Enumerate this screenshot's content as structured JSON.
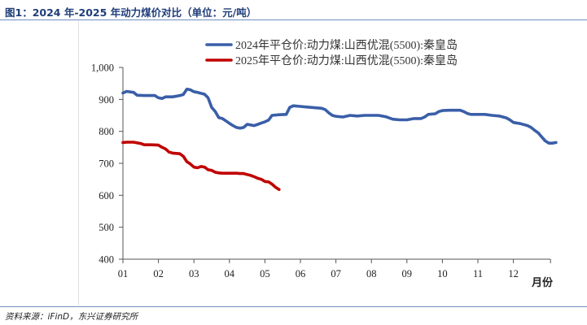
{
  "title": "图1：2024 年-2025 年动力煤价对比（单位：元/吨）",
  "source": "资料来源：iFinD，东兴证券研究所",
  "chart_data": {
    "type": "line",
    "xlabel": "月份",
    "categories": [
      "01",
      "02",
      "03",
      "04",
      "05",
      "06",
      "07",
      "08",
      "09",
      "10",
      "11",
      "12"
    ],
    "ylim": [
      400,
      1000
    ],
    "yticks": [
      "400",
      "500",
      "600",
      "700",
      "800",
      "900",
      "1,000"
    ],
    "grid": false,
    "legend_position": "top-center",
    "series": [
      {
        "name": "2024年平仓价:动力煤:山西优混(5500):秦皇岛",
        "color": "#3a5ea8",
        "points": [
          [
            1.0,
            920
          ],
          [
            1.1,
            925
          ],
          [
            1.3,
            922
          ],
          [
            1.4,
            913
          ],
          [
            1.6,
            912
          ],
          [
            1.8,
            912
          ],
          [
            1.9,
            912
          ],
          [
            2.0,
            905
          ],
          [
            2.1,
            903
          ],
          [
            2.2,
            908
          ],
          [
            2.4,
            908
          ],
          [
            2.6,
            912
          ],
          [
            2.7,
            915
          ],
          [
            2.8,
            932
          ],
          [
            2.9,
            930
          ],
          [
            3.0,
            924
          ],
          [
            3.1,
            922
          ],
          [
            3.3,
            916
          ],
          [
            3.4,
            905
          ],
          [
            3.5,
            875
          ],
          [
            3.6,
            862
          ],
          [
            3.7,
            843
          ],
          [
            3.8,
            840
          ],
          [
            3.9,
            833
          ],
          [
            4.0,
            825
          ],
          [
            4.1,
            818
          ],
          [
            4.2,
            812
          ],
          [
            4.3,
            810
          ],
          [
            4.4,
            812
          ],
          [
            4.5,
            822
          ],
          [
            4.6,
            820
          ],
          [
            4.7,
            818
          ],
          [
            4.8,
            822
          ],
          [
            4.9,
            826
          ],
          [
            5.0,
            830
          ],
          [
            5.1,
            835
          ],
          [
            5.2,
            850
          ],
          [
            5.4,
            852
          ],
          [
            5.6,
            853
          ],
          [
            5.7,
            875
          ],
          [
            5.8,
            880
          ],
          [
            6.0,
            878
          ],
          [
            6.2,
            876
          ],
          [
            6.4,
            874
          ],
          [
            6.6,
            872
          ],
          [
            6.7,
            868
          ],
          [
            6.8,
            858
          ],
          [
            6.9,
            850
          ],
          [
            7.0,
            847
          ],
          [
            7.2,
            845
          ],
          [
            7.4,
            850
          ],
          [
            7.6,
            848
          ],
          [
            7.8,
            850
          ],
          [
            8.0,
            850
          ],
          [
            8.2,
            850
          ],
          [
            8.4,
            846
          ],
          [
            8.6,
            838
          ],
          [
            8.8,
            836
          ],
          [
            9.0,
            836
          ],
          [
            9.2,
            840
          ],
          [
            9.4,
            840
          ],
          [
            9.5,
            845
          ],
          [
            9.6,
            853
          ],
          [
            9.8,
            855
          ],
          [
            9.9,
            862
          ],
          [
            10.0,
            865
          ],
          [
            10.2,
            866
          ],
          [
            10.4,
            866
          ],
          [
            10.5,
            866
          ],
          [
            10.6,
            862
          ],
          [
            10.7,
            856
          ],
          [
            10.8,
            853
          ],
          [
            11.0,
            853
          ],
          [
            11.2,
            853
          ],
          [
            11.4,
            850
          ],
          [
            11.6,
            848
          ],
          [
            11.8,
            842
          ],
          [
            11.9,
            836
          ],
          [
            12.0,
            828
          ],
          [
            12.2,
            824
          ],
          [
            12.4,
            818
          ],
          [
            12.5,
            812
          ],
          [
            12.6,
            803
          ],
          [
            12.7,
            795
          ],
          [
            12.8,
            782
          ],
          [
            12.9,
            770
          ],
          [
            13.0,
            763
          ],
          [
            13.1,
            763
          ],
          [
            13.2,
            765
          ]
        ]
      },
      {
        "name": "2025年平仓价:动力煤:山西优混(5500):秦皇岛",
        "color": "#c00000",
        "points": [
          [
            1.0,
            765
          ],
          [
            1.1,
            766
          ],
          [
            1.3,
            766
          ],
          [
            1.5,
            762
          ],
          [
            1.6,
            758
          ],
          [
            1.8,
            758
          ],
          [
            2.0,
            757
          ],
          [
            2.1,
            750
          ],
          [
            2.2,
            745
          ],
          [
            2.3,
            735
          ],
          [
            2.4,
            732
          ],
          [
            2.6,
            730
          ],
          [
            2.7,
            722
          ],
          [
            2.8,
            705
          ],
          [
            2.9,
            698
          ],
          [
            3.0,
            688
          ],
          [
            3.1,
            686
          ],
          [
            3.2,
            690
          ],
          [
            3.3,
            688
          ],
          [
            3.4,
            680
          ],
          [
            3.5,
            678
          ],
          [
            3.6,
            672
          ],
          [
            3.7,
            670
          ],
          [
            3.8,
            669
          ],
          [
            4.0,
            669
          ],
          [
            4.2,
            669
          ],
          [
            4.3,
            668
          ],
          [
            4.4,
            668
          ],
          [
            4.5,
            665
          ],
          [
            4.6,
            662
          ],
          [
            4.7,
            658
          ],
          [
            4.8,
            653
          ],
          [
            4.9,
            650
          ],
          [
            5.0,
            643
          ],
          [
            5.1,
            642
          ],
          [
            5.2,
            635
          ],
          [
            5.3,
            625
          ],
          [
            5.4,
            618
          ]
        ]
      }
    ]
  }
}
